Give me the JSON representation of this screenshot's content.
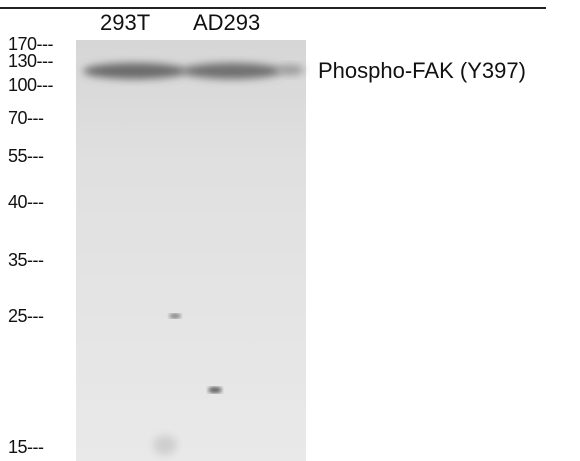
{
  "lanes": [
    "293T",
    "AD293"
  ],
  "markers": [
    "170---",
    "130---",
    "100---",
    "70---",
    "55---",
    "40---",
    "35---",
    "25---",
    "15---"
  ],
  "band_label": "Phospho-FAK (Y397)"
}
